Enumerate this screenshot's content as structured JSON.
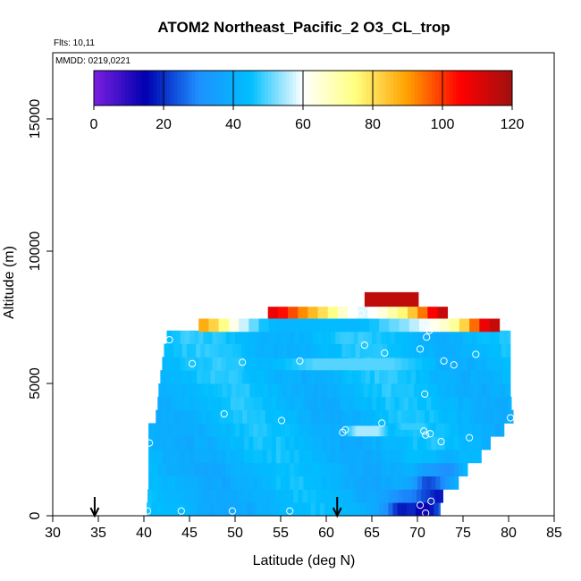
{
  "chart_data": {
    "type": "heatmap",
    "title": "ATOM2 Northeast_Pacific_2 O3_CL_trop",
    "flights_label": "Flts: 10,11",
    "dates_label": "MMDD: 0219,0221",
    "xlabel": "Latitude (deg N)",
    "ylabel": "Altitude (m)",
    "xlim": [
      30,
      85
    ],
    "ylim": [
      0,
      17500
    ],
    "x_ticks": [
      "30",
      "35",
      "40",
      "45",
      "50",
      "55",
      "60",
      "65",
      "70",
      "75",
      "80",
      "85"
    ],
    "y_ticks": [
      "0",
      "5000",
      "10000",
      "15000"
    ],
    "colorbar": {
      "range": [
        0,
        120
      ],
      "ticks": [
        "0",
        "20",
        "40",
        "60",
        "80",
        "100",
        "120"
      ],
      "colors": [
        "#7b1fe0",
        "#0000b0",
        "#1e90ff",
        "#00bfff",
        "#ffffff",
        "#ffff80",
        "#ffa000",
        "#ff0000",
        "#a01010"
      ]
    },
    "arrows_lat": [
      34.6,
      61.2
    ],
    "extent": [
      {
        "alt": 0,
        "lat_min": 40.3,
        "lat_max": 72.5
      },
      {
        "alt": 500,
        "lat_min": 40.4,
        "lat_max": 72.8
      },
      {
        "alt": 1000,
        "lat_min": 40.5,
        "lat_max": 74.5
      },
      {
        "alt": 1500,
        "lat_min": 40.5,
        "lat_max": 75.5
      },
      {
        "alt": 2000,
        "lat_min": 40.5,
        "lat_max": 77
      },
      {
        "alt": 2500,
        "lat_min": 40.5,
        "lat_max": 78
      },
      {
        "alt": 3000,
        "lat_min": 40.5,
        "lat_max": 79.5
      },
      {
        "alt": 3500,
        "lat_min": 41.3,
        "lat_max": 80.5
      },
      {
        "alt": 4000,
        "lat_min": 41.5,
        "lat_max": 80.3
      },
      {
        "alt": 4500,
        "lat_min": 41.6,
        "lat_max": 80.2
      },
      {
        "alt": 5000,
        "lat_min": 41.8,
        "lat_max": 80.2
      },
      {
        "alt": 5500,
        "lat_min": 42.0,
        "lat_max": 80.2
      },
      {
        "alt": 6000,
        "lat_min": 42.2,
        "lat_max": 80.2
      },
      {
        "alt": 6500,
        "lat_min": 42.5,
        "lat_max": 80.2
      }
    ],
    "overlay_bands": [
      {
        "alt_bottom": 6950,
        "alt_top": 7450,
        "lat_min": 46.0,
        "lat_max": 79.0,
        "values": [
          88,
          82,
          74,
          63,
          57,
          51,
          46,
          43,
          42,
          42,
          43,
          43,
          44,
          44,
          43,
          43,
          44,
          46,
          49,
          51,
          53,
          56,
          59,
          62,
          66,
          72,
          82,
          95,
          108,
          114
        ]
      },
      {
        "alt_bottom": 7450,
        "alt_top": 7900,
        "lat_min": 53.6,
        "lat_max": 73.3,
        "values": [
          108,
          104,
          98,
          92,
          86,
          80,
          74,
          66,
          60,
          58,
          60,
          64,
          70,
          76,
          84,
          94,
          105,
          114
        ]
      },
      {
        "alt_bottom": 7900,
        "alt_top": 8450,
        "lat_min": 64.2,
        "lat_max": 70.1,
        "values": [
          115
        ]
      }
    ],
    "light_streaks": [
      {
        "alt_bottom": 5500,
        "alt_top": 5950,
        "lat_min": 54.0,
        "lat_max": 72.0,
        "value": 50
      },
      {
        "alt_bottom": 3000,
        "alt_top": 3400,
        "lat_min": 62.0,
        "lat_max": 67.0,
        "value": 55
      },
      {
        "alt_bottom": 3250,
        "alt_top": 3500,
        "lat_min": 67.0,
        "lat_max": 72.0,
        "value": 48
      }
    ],
    "dark_region": {
      "note": "low ozone near surface at high latitude",
      "points": [
        {
          "lat": 68,
          "alt": 0,
          "value": 18
        },
        {
          "lat": 70.5,
          "alt": 0,
          "value": 12
        },
        {
          "lat": 72,
          "alt": 500,
          "value": 15
        },
        {
          "lat": 71,
          "alt": 1000,
          "value": 22
        },
        {
          "lat": 73,
          "alt": 1500,
          "value": 30
        }
      ]
    },
    "sample_points": [
      {
        "lat": 40.4,
        "alt": 180
      },
      {
        "lat": 44.1,
        "alt": 180
      },
      {
        "lat": 49.7,
        "alt": 180
      },
      {
        "lat": 56.0,
        "alt": 180
      },
      {
        "lat": 70.3,
        "alt": 400
      },
      {
        "lat": 71.5,
        "alt": 550
      },
      {
        "lat": 70.9,
        "alt": 100
      },
      {
        "lat": 40.6,
        "alt": 2750
      },
      {
        "lat": 48.8,
        "alt": 3850
      },
      {
        "lat": 55.1,
        "alt": 3600
      },
      {
        "lat": 61.8,
        "alt": 3150
      },
      {
        "lat": 62.1,
        "alt": 3250
      },
      {
        "lat": 66.1,
        "alt": 3500
      },
      {
        "lat": 70.7,
        "alt": 3200
      },
      {
        "lat": 70.9,
        "alt": 3050
      },
      {
        "lat": 71.4,
        "alt": 3100
      },
      {
        "lat": 72.6,
        "alt": 2800
      },
      {
        "lat": 75.7,
        "alt": 2950
      },
      {
        "lat": 80.2,
        "alt": 3700
      },
      {
        "lat": 70.8,
        "alt": 4600
      },
      {
        "lat": 45.3,
        "alt": 5750
      },
      {
        "lat": 50.8,
        "alt": 5800
      },
      {
        "lat": 57.1,
        "alt": 5850
      },
      {
        "lat": 72.9,
        "alt": 5850
      },
      {
        "lat": 74.0,
        "alt": 5700
      },
      {
        "lat": 76.4,
        "alt": 6100
      },
      {
        "lat": 66.4,
        "alt": 6150
      },
      {
        "lat": 70.3,
        "alt": 6300
      },
      {
        "lat": 64.2,
        "alt": 6450
      },
      {
        "lat": 42.8,
        "alt": 6650
      },
      {
        "lat": 71.0,
        "alt": 6750
      },
      {
        "lat": 71.3,
        "alt": 7000
      },
      {
        "lat": 63.8,
        "alt": 7650
      }
    ]
  }
}
